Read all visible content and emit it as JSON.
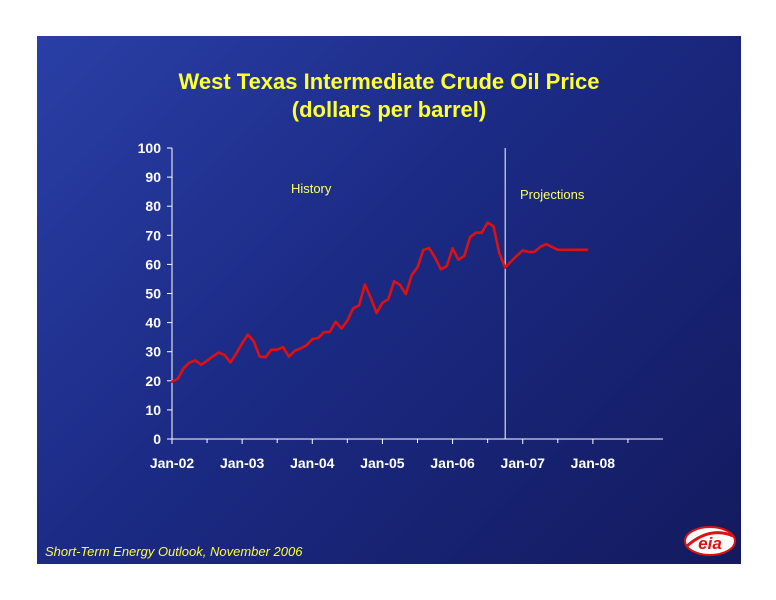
{
  "colors": {
    "background": "#1b2a84",
    "title": "#ffff33",
    "line": "#dd1111",
    "axis": "#ffffff",
    "text": "#ffffff",
    "footer": "#ffff33"
  },
  "title_line1": "West Texas Intermediate Crude Oil Price",
  "title_line2": "(dollars per barrel)",
  "footer": "Short-Term Energy Outlook, November 2006",
  "logo_text": "eia",
  "logo_icon": "eia-logo",
  "chart_data": {
    "type": "line",
    "title": "West Texas Intermediate Crude Oil Price (dollars per barrel)",
    "xlabel": "",
    "ylabel": "",
    "ylim": [
      0,
      100
    ],
    "yticks": [
      0,
      10,
      20,
      30,
      40,
      50,
      60,
      70,
      80,
      90,
      100
    ],
    "x_ticks": [
      "Jan-02",
      "Jan-03",
      "Jan-04",
      "Jan-05",
      "Jan-06",
      "Jan-07",
      "Jan-08"
    ],
    "grid": false,
    "legend": "none",
    "start_month": "Jan-02",
    "annotations": [
      {
        "text": "History",
        "region": "history"
      },
      {
        "text": "Projections",
        "region": "projections"
      }
    ],
    "divider_month": "Oct-06",
    "series": [
      {
        "values": [
          19.7,
          20.7,
          24.4,
          26.3,
          27.0,
          25.5,
          26.9,
          28.4,
          29.7,
          28.9,
          26.3,
          29.4,
          32.9,
          35.9,
          33.5,
          28.3,
          28.1,
          30.7,
          30.7,
          31.6,
          28.3,
          30.3,
          31.1,
          32.2,
          34.3,
          34.7,
          36.7,
          36.8,
          40.3,
          38.0,
          40.7,
          44.9,
          45.9,
          53.1,
          48.5,
          43.3,
          46.8,
          48.0,
          54.2,
          53.0,
          49.8,
          56.3,
          59.0,
          65.0,
          65.6,
          62.3,
          58.3,
          59.4,
          65.5,
          61.6,
          62.9,
          69.4,
          70.9,
          70.9,
          74.4,
          73.1,
          63.8,
          58.9,
          61.0,
          63.0,
          64.8,
          64.3,
          64.3,
          66.0,
          67.0,
          66.0,
          65.0,
          65.0,
          65.0,
          65.0,
          65.0,
          65.0
        ]
      }
    ]
  }
}
